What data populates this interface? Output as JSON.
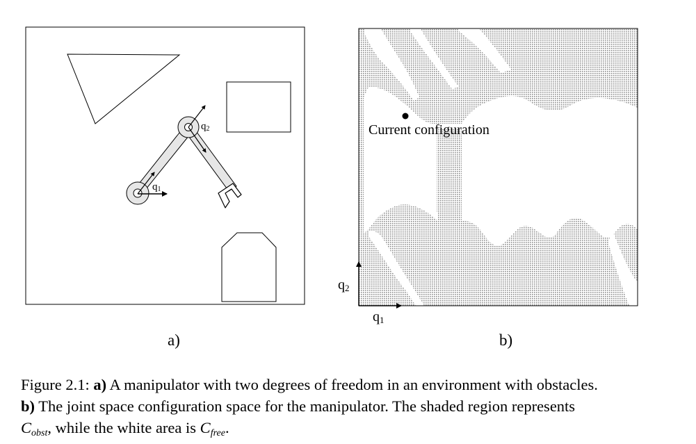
{
  "panel_a": {
    "label": "a)",
    "q1_label": "q",
    "q1_sub": "1",
    "q2_label": "q",
    "q2_sub": "2"
  },
  "panel_b": {
    "label": "b)",
    "marker_label": "Current configuration",
    "axis_q1": "q",
    "axis_q1_sub": "1",
    "axis_q2": "q",
    "axis_q2_sub": "2"
  },
  "caption": {
    "prefix": "Figure 2.1: ",
    "a_tag": "a)",
    "a_text": " A manipulator with two degrees of freedom in an environment with obstacles.",
    "b_tag": "b)",
    "b_text": " The joint space configuration space for the manipulator.  The shaded region represents ",
    "c_obst": "C",
    "c_obst_sub": "obst",
    "middle": ", while the white area is ",
    "c_free": "C",
    "c_free_sub": "free",
    "end": "."
  },
  "colors": {
    "obstacle_shade": "#c4c4c4",
    "link_fill": "#e6e6e6"
  }
}
